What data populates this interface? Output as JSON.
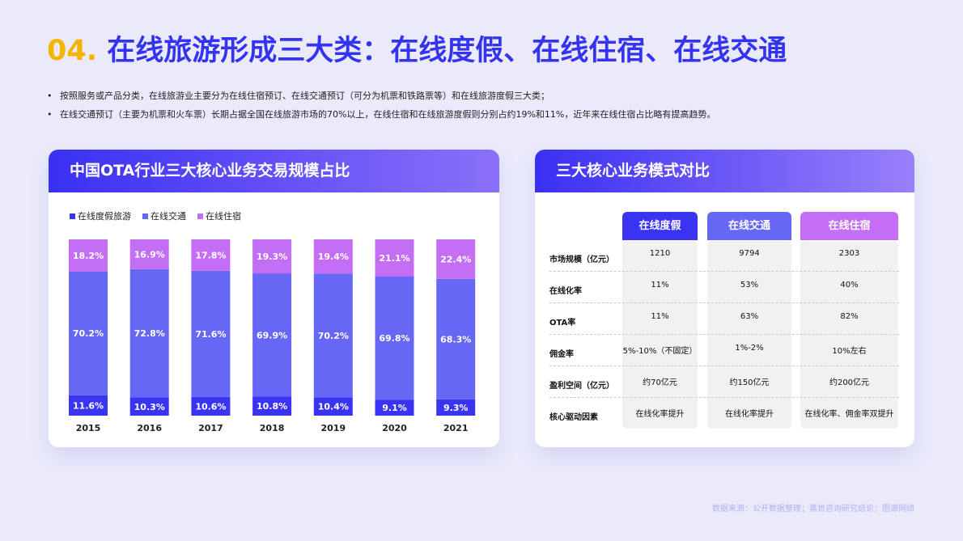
{
  "header": {
    "number": "04.",
    "title": "在线旅游形成三大类：在线度假、在线住宿、在线交通"
  },
  "bullets": [
    "按照服务或产品分类，在线旅游业主要分为在线住宿预订、在线交通预订（可分为机票和铁路票等）和在线旅游度假三大类；",
    "在线交通预订（主要为机票和火车票）长期占据全国在线旅游市场的70%以上，在线住宿和在线旅游度假则分别占约19%和11%，近年来在线住宿占比略有提高趋势。"
  ],
  "chart_data": {
    "type": "stacked_bar",
    "title": "中国OTA行业三大核心业务交易规模占比",
    "categories": [
      "2015",
      "2016",
      "2017",
      "2018",
      "2019",
      "2020",
      "2021"
    ],
    "ylim": [
      0,
      100
    ],
    "series": [
      {
        "name": "在线度假旅游",
        "color": "#3a34f2",
        "values": [
          11.6,
          10.3,
          10.6,
          10.8,
          10.4,
          9.1,
          9.3
        ],
        "value_labels": [
          "11.6%",
          "10.3%",
          "10.6%",
          "10.8%",
          "10.4%",
          "9.1%",
          "9.3%"
        ]
      },
      {
        "name": "在线交通",
        "color": "#6767f5",
        "values": [
          70.2,
          72.8,
          71.6,
          69.9,
          70.2,
          69.8,
          68.3
        ],
        "value_labels": [
          "70.2%",
          "72.8%",
          "71.6%",
          "69.9%",
          "70.2%",
          "69.8%",
          "68.3%"
        ]
      },
      {
        "name": "在线住宿",
        "color": "#c46ef6",
        "values": [
          18.2,
          16.9,
          17.8,
          19.3,
          19.4,
          21.1,
          22.4
        ],
        "value_labels": [
          "18.2%",
          "16.9%",
          "17.8%",
          "19.3%",
          "19.4%",
          "21.1%",
          "22.4%"
        ]
      }
    ]
  },
  "table": {
    "title": "三大核心业务模式对比",
    "columns": [
      "在线度假",
      "在线交通",
      "在线住宿"
    ],
    "column_colors": [
      "#3a34f2",
      "#6767f5",
      "#c46ef6"
    ],
    "rows": [
      [
        "市场规模（亿元）",
        "1210",
        "9794",
        "2303"
      ],
      [
        "在线化率",
        "11%",
        "53%",
        "40%"
      ],
      [
        "OTA率",
        "11%",
        "63%",
        "82%"
      ],
      [
        "佣金率",
        "5%-10%（不固定）",
        "1%-2%",
        "10%左右"
      ],
      [
        "盈利空间（亿元）",
        "约70亿元",
        "约150亿元",
        "约200亿元"
      ],
      [
        "核心驱动因素",
        "在线化率提升",
        "在线化率提升",
        "在线化率、佣金率双提升"
      ]
    ]
  },
  "source": "数据来源：公开数据整理；嘉世咨询研究结论；图源网络"
}
